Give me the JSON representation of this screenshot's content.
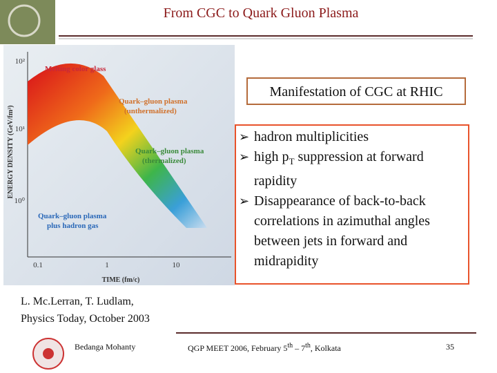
{
  "header": {
    "title": "From CGC to Quark Gluon Plasma"
  },
  "figure": {
    "y_axis_label": "ENERGY DENSITY (GeV/fm³)",
    "x_axis_label": "TIME (fm/c)",
    "y_ticks": [
      "10²",
      "10¹",
      "10⁰"
    ],
    "x_ticks": [
      "0.1",
      "1",
      "10"
    ],
    "annotations": [
      "Melting color glass",
      "Quark–gluon plasma",
      "(unthermalized)",
      "Quark–gluon plasma",
      "(thermalized)",
      "Quark–gluon plasma",
      "plus hadron gas"
    ]
  },
  "box": {
    "title": "Manifestation of CGC at RHIC",
    "bullets": [
      [
        "hadron multiplicities"
      ],
      [
        "high p",
        "T",
        " suppression at  forward rapidity"
      ],
      [
        "Disappearance of back-to-back correlations in azimuthal angles between jets in forward and midrapidity"
      ]
    ]
  },
  "citation": [
    "L. Mc.Lerran, T. Ludlam,",
    "Physics Today, October 2003"
  ],
  "footer": {
    "author": "Bedanga Mohanty",
    "event": [
      "QGP MEET 2006, February 5",
      "th",
      " – 7",
      "th",
      ", Kolkata"
    ],
    "page": "35"
  }
}
